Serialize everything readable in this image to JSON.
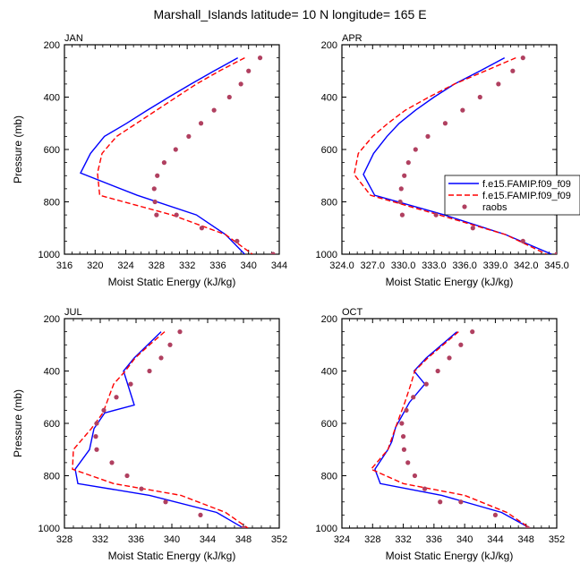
{
  "title": "Marshall_Islands  latitude= 10 N longitude= 165 E",
  "legend": {
    "entries": [
      {
        "label": "f.e15.FAMIP.f09_f09",
        "style": "solid",
        "color": "#0000ff"
      },
      {
        "label": "f.e15.FAMIP.f09_f09",
        "style": "dashed",
        "color": "#ff0000"
      },
      {
        "label": "raobs",
        "style": "dots",
        "color": "#b04060"
      }
    ]
  },
  "chart_data": [
    {
      "type": "line",
      "panel_label": "JAN",
      "xlabel": "Moist Static Energy (kJ/kg)",
      "ylabel": "Pressure (mb)",
      "xlim": [
        316,
        344
      ],
      "ylim": [
        1000,
        200
      ],
      "xticks": [
        316,
        320,
        324,
        328,
        332,
        336,
        340,
        344
      ],
      "xtick_labels": [
        "316",
        "320",
        "324",
        "328",
        "332",
        "336",
        "340",
        "344"
      ],
      "yticks": [
        200,
        400,
        600,
        800,
        1000
      ],
      "ytick_labels": [
        "200",
        "400",
        "600",
        "800",
        "1000"
      ],
      "series": [
        {
          "name": "f.e15.FAMIP.f09_f09",
          "style": "solid",
          "color": "#0000ff",
          "x": [
            338.6,
            335.5,
            332.5,
            329.6,
            326.8,
            324.1,
            321.2,
            319.4,
            318.1,
            325.5,
            333.2,
            337.0,
            339.5
          ],
          "y": [
            250,
            300,
            350,
            400,
            450,
            500,
            550,
            615,
            690,
            775,
            850,
            925,
            1000
          ]
        },
        {
          "name": "f.e15.FAMIP.f09_f09",
          "style": "dashed",
          "color": "#ff0000",
          "x": [
            339.5,
            336.2,
            333.2,
            330.6,
            328.0,
            325.4,
            322.8,
            320.9,
            320.3,
            320.6,
            330.0,
            337.0,
            340.5
          ],
          "y": [
            250,
            300,
            350,
            400,
            450,
            500,
            550,
            615,
            690,
            775,
            850,
            925,
            1000
          ]
        },
        {
          "name": "raobs",
          "style": "dots",
          "color": "#b04060",
          "x": [
            341.5,
            340.0,
            339.0,
            337.5,
            335.5,
            333.8,
            332.2,
            330.5,
            329.0,
            328.1,
            327.7,
            327.8,
            328.0,
            330.6,
            333.9,
            338.5,
            343.2
          ],
          "y": [
            250,
            300,
            350,
            400,
            450,
            500,
            550,
            600,
            650,
            700,
            750,
            800,
            850,
            850,
            900,
            950,
            1000
          ]
        }
      ]
    },
    {
      "type": "line",
      "panel_label": "APR",
      "xlabel": "Moist Static Energy (kJ/kg)",
      "ylabel": "",
      "xlim": [
        324,
        345
      ],
      "ylim": [
        1000,
        200
      ],
      "xticks": [
        324,
        327,
        330,
        333,
        336,
        339,
        342,
        345
      ],
      "xtick_labels": [
        "324.0",
        "327.0",
        "330.0",
        "333.0",
        "336.0",
        "339.0",
        "342.0",
        "345.0"
      ],
      "yticks": [
        200,
        400,
        600,
        800,
        1000
      ],
      "ytick_labels": [
        "200",
        "400",
        "600",
        "800",
        "1000"
      ],
      "series": [
        {
          "name": "f.e15.FAMIP.f09_f09",
          "style": "solid",
          "color": "#0000ff",
          "x": [
            339.9,
            337.5,
            335.0,
            333.0,
            331.2,
            329.6,
            328.4,
            327.1,
            326.1,
            327.2,
            334.0,
            340.0,
            344.5
          ],
          "y": [
            250,
            300,
            350,
            400,
            450,
            500,
            550,
            615,
            695,
            775,
            850,
            925,
            1000
          ]
        },
        {
          "name": "f.e15.FAMIP.f09_f09",
          "style": "dashed",
          "color": "#ff0000",
          "x": [
            341.0,
            338.0,
            335.0,
            332.5,
            330.2,
            328.5,
            327.0,
            325.6,
            325.2,
            326.8,
            333.5,
            340.0,
            344.0
          ],
          "y": [
            250,
            300,
            350,
            400,
            450,
            500,
            550,
            615,
            695,
            775,
            850,
            925,
            1000
          ]
        },
        {
          "name": "raobs",
          "style": "dots",
          "color": "#b04060",
          "x": [
            341.7,
            340.7,
            339.3,
            337.5,
            335.8,
            334.1,
            332.4,
            331.2,
            330.5,
            330.1,
            329.8,
            329.7,
            329.9,
            333.2,
            336.8,
            341.7,
            345.0
          ],
          "y": [
            250,
            300,
            350,
            400,
            450,
            500,
            550,
            600,
            650,
            700,
            750,
            800,
            850,
            850,
            900,
            950,
            1000
          ]
        }
      ]
    },
    {
      "type": "line",
      "panel_label": "JUL",
      "xlabel": "Moist Static Energy (kJ/kg)",
      "ylabel": "Pressure (mb)",
      "xlim": [
        328,
        352
      ],
      "ylim": [
        1000,
        200
      ],
      "xticks": [
        328,
        332,
        336,
        340,
        344,
        348,
        352
      ],
      "xtick_labels": [
        "328",
        "332",
        "336",
        "340",
        "344",
        "348",
        "352"
      ],
      "yticks": [
        200,
        400,
        600,
        800,
        1000
      ],
      "ytick_labels": [
        "200",
        "400",
        "600",
        "800",
        "1000"
      ],
      "series": [
        {
          "name": "f.e15.FAMIP.f09_f09",
          "style": "solid",
          "color": "#0000ff",
          "x": [
            338.8,
            337.3,
            335.8,
            334.6,
            335.8,
            332.5,
            331.3,
            330.8,
            329.2,
            329.5,
            337.5,
            345.0,
            348.0
          ],
          "y": [
            250,
            300,
            350,
            400,
            530,
            560,
            620,
            700,
            775,
            830,
            875,
            940,
            1000
          ]
        },
        {
          "name": "f.e15.FAMIP.f09_f09",
          "style": "dashed",
          "color": "#ff0000",
          "x": [
            339.2,
            337.5,
            335.9,
            334.8,
            333.5,
            332.3,
            331.0,
            329.0,
            328.9,
            333.5,
            341.0,
            346.0,
            348.5
          ],
          "y": [
            250,
            300,
            350,
            400,
            450,
            560,
            620,
            700,
            775,
            830,
            875,
            940,
            1000
          ]
        },
        {
          "name": "raobs",
          "style": "dots",
          "color": "#b04060",
          "x": [
            340.9,
            339.8,
            338.8,
            337.5,
            335.4,
            333.8,
            332.4,
            331.6,
            331.5,
            331.6,
            333.3,
            335.0,
            336.6,
            339.3,
            343.2,
            348.0
          ],
          "y": [
            250,
            300,
            350,
            400,
            450,
            500,
            550,
            600,
            650,
            700,
            750,
            800,
            850,
            900,
            950,
            1000
          ]
        }
      ]
    },
    {
      "type": "line",
      "panel_label": "OCT",
      "xlabel": "Moist Static Energy (kJ/kg)",
      "ylabel": "",
      "xlim": [
        324,
        352
      ],
      "ylim": [
        1000,
        200
      ],
      "xticks": [
        324,
        328,
        332,
        336,
        340,
        344,
        348,
        352
      ],
      "xtick_labels": [
        "324",
        "328",
        "332",
        "336",
        "340",
        "344",
        "348",
        "352"
      ],
      "yticks": [
        200,
        400,
        600,
        800,
        1000
      ],
      "ytick_labels": [
        "200",
        "400",
        "600",
        "800",
        "1000"
      ],
      "series": [
        {
          "name": "f.e15.FAMIP.f09_f09",
          "style": "solid",
          "color": "#0000ff",
          "x": [
            339.0,
            337.0,
            335.0,
            333.4,
            334.8,
            332.8,
            331.0,
            330.5,
            330.0,
            328.3,
            329.0,
            337.0,
            344.8,
            348.5
          ],
          "y": [
            250,
            300,
            350,
            400,
            450,
            520,
            615,
            670,
            700,
            775,
            830,
            875,
            940,
            1000
          ]
        },
        {
          "name": "f.e15.FAMIP.f09_f09",
          "style": "dashed",
          "color": "#ff0000",
          "x": [
            339.2,
            337.2,
            335.2,
            333.5,
            333.0,
            332.2,
            331.0,
            330.0,
            327.8,
            332.0,
            340.0,
            345.5,
            348.5
          ],
          "y": [
            250,
            300,
            350,
            400,
            450,
            520,
            615,
            700,
            775,
            830,
            875,
            940,
            1000
          ]
        },
        {
          "name": "raobs",
          "style": "dots",
          "color": "#b04060",
          "x": [
            341.0,
            339.5,
            338.0,
            336.5,
            335.0,
            333.3,
            332.4,
            331.8,
            332.0,
            332.1,
            332.6,
            333.5,
            334.8,
            336.8,
            339.5,
            344.0,
            348.2
          ],
          "y": [
            250,
            300,
            350,
            400,
            450,
            500,
            550,
            600,
            650,
            700,
            750,
            800,
            850,
            900,
            900,
            950,
            1000
          ]
        }
      ]
    }
  ]
}
